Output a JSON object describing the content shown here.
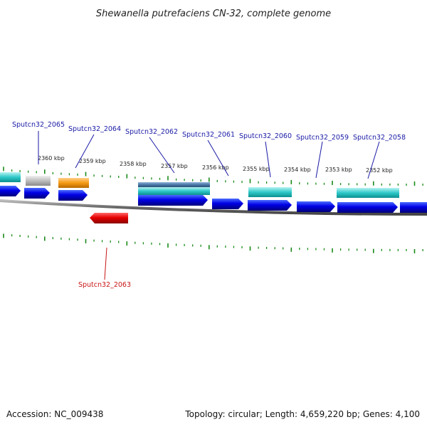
{
  "title": "Shewanella putrefaciens CN-32, complete genome",
  "footer": {
    "accession": "Accession: NC_009438",
    "summary": "Topology: circular; Length: 4,659,220 bp; Genes: 4,100"
  },
  "colors": {
    "forward_cds": "#0000dd",
    "reverse_cds": "#dd0000",
    "tick_marks": "#1a8a1a",
    "backbone": "#777777",
    "label_forward": "#1a1aa6",
    "label_reverse": "#c81414",
    "feature_cyan": "#2ec8c8",
    "feature_grey": "#bdbdbd",
    "feature_orange": "#f59a14",
    "feature_steel": "#4a78a8"
  },
  "tick_labels": [
    "2360 kbp",
    "2359 kbp",
    "2358 kbp",
    "2357 kbp",
    "2356 kbp",
    "2355 kbp",
    "2354 kbp",
    "2353 kbp",
    "2352 kbp"
  ],
  "gene_labels_top": [
    "Sputcn32_2065",
    "Sputcn32_2064",
    "Sputcn32_2062",
    "Sputcn32_2061",
    "Sputcn32_2060",
    "Sputcn32_2059",
    "Sputcn32_2058"
  ],
  "gene_labels_bottom": [
    "Sputcn32_2063"
  ]
}
